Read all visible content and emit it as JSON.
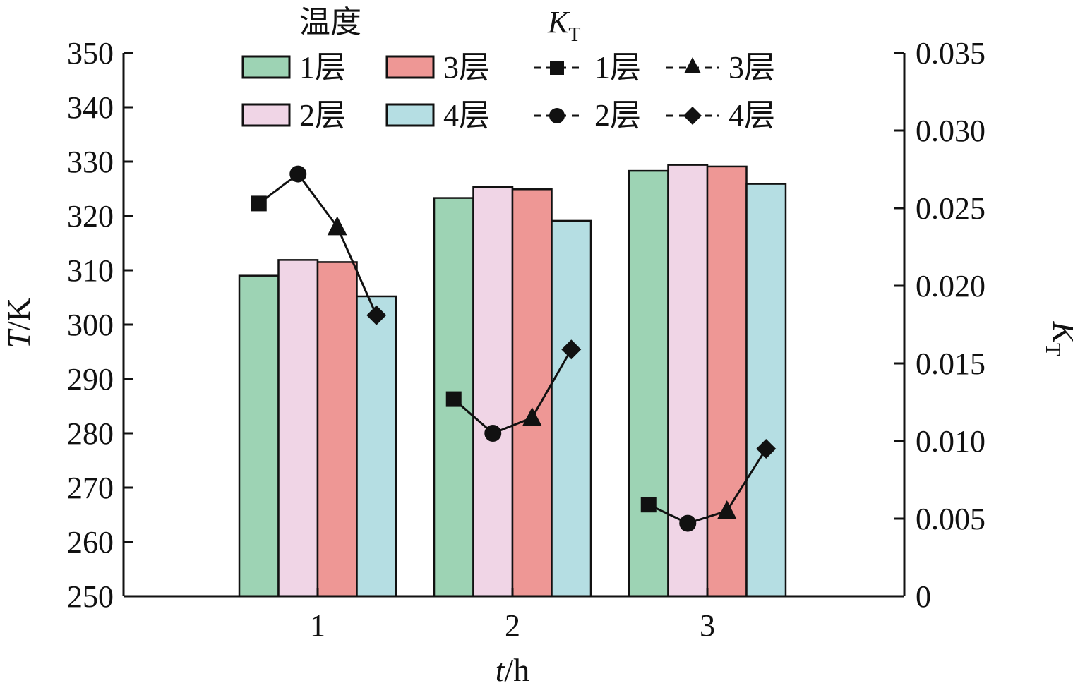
{
  "chart_data": {
    "type": "bar",
    "x_label_italic": "t",
    "x_label_unit": "/h",
    "categories": [
      "1",
      "2",
      "3"
    ],
    "left_axis": {
      "label_italic": "T",
      "label_unit": "/K",
      "ylim": [
        250,
        350
      ],
      "ticks": [
        "250",
        "260",
        "270",
        "280",
        "290",
        "300",
        "310",
        "320",
        "330",
        "340",
        "350"
      ]
    },
    "right_axis": {
      "label_main": "K",
      "label_sub": "T",
      "ylim": [
        0,
        0.035
      ],
      "ticks": [
        "0",
        "0.005",
        "0.010",
        "0.015",
        "0.020",
        "0.025",
        "0.030",
        "0.035"
      ]
    },
    "bar_legend_title": "温度",
    "line_legend_title_main": "K",
    "line_legend_title_sub": "T",
    "bar_series": [
      {
        "name": "1层",
        "color": "#9dd3b4",
        "values": [
          309,
          323.3,
          328.3
        ]
      },
      {
        "name": "2层",
        "color": "#f0d5e6",
        "values": [
          311.9,
          325.3,
          329.4
        ]
      },
      {
        "name": "3层",
        "color": "#ee9795",
        "values": [
          311.5,
          324.9,
          329.1
        ]
      },
      {
        "name": "4层",
        "color": "#b5dee3",
        "values": [
          305.2,
          319.1,
          325.9
        ]
      }
    ],
    "line_points": [
      {
        "category": "1",
        "values": [
          0.0253,
          0.0272,
          0.0238,
          0.0181
        ]
      },
      {
        "category": "2",
        "values": [
          0.0127,
          0.0105,
          0.0115,
          0.0159
        ]
      },
      {
        "category": "3",
        "values": [
          0.0059,
          0.0047,
          0.0055,
          0.0095
        ]
      }
    ],
    "line_series_markers": [
      {
        "name": "1层",
        "marker": "square"
      },
      {
        "name": "2层",
        "marker": "circle"
      },
      {
        "name": "3层",
        "marker": "triangle"
      },
      {
        "name": "4层",
        "marker": "diamond"
      }
    ]
  }
}
